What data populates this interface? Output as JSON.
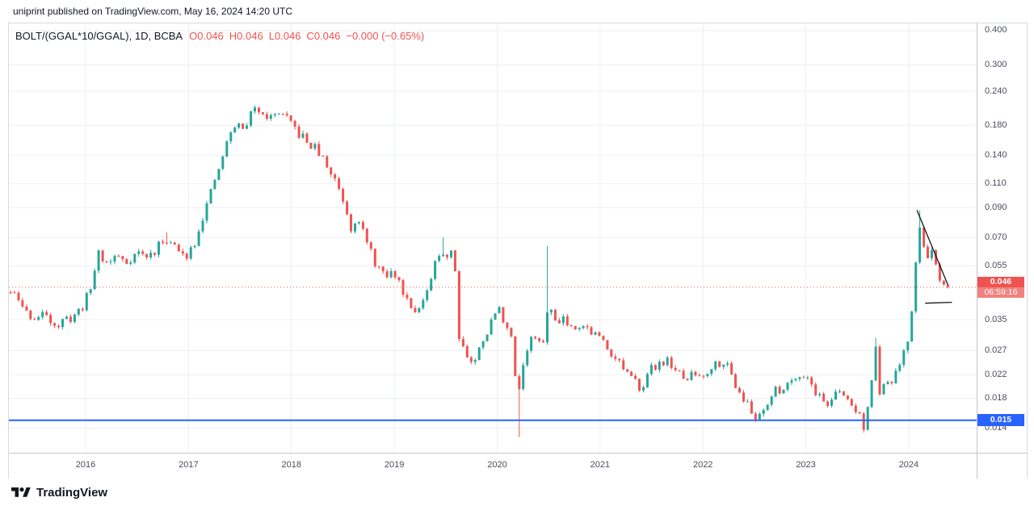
{
  "attribution": "uniprint published on TradingView.com, May 16, 2024 14:20 UTC",
  "header": {
    "symbol": "BOLT/(GGAL*10/GGAL), 1D, BCBA",
    "ohlc_items": [
      {
        "label": "O",
        "value": "0.046"
      },
      {
        "label": "H",
        "value": "0.046"
      },
      {
        "label": "L",
        "value": "0.046"
      },
      {
        "label": "C",
        "value": "0.046"
      },
      {
        "label": "",
        "value": "−0.000 (−0.65%)"
      }
    ]
  },
  "chart_data": {
    "type": "candlestick",
    "symbol": "BOLT/(GGAL*10/GGAL)",
    "interval": "1D",
    "exchange": "BCBA",
    "scale": "logarithmic",
    "time_range": [
      2015.254,
      2024.66
    ],
    "price_range": [
      0.0114,
      0.425
    ],
    "x_axis_labels": [
      "2016",
      "2017",
      "2018",
      "2019",
      "2020",
      "2021",
      "2022",
      "2023",
      "2024"
    ],
    "y_axis_labels": [
      "0.400",
      "0.300",
      "0.240",
      "0.180",
      "0.140",
      "0.110",
      "0.090",
      "0.070",
      "0.055",
      "0.035",
      "0.027",
      "0.022",
      "0.018",
      "0.014"
    ],
    "last_price": 0.046,
    "last_price_label": "0.046",
    "countdown": "06:59:16",
    "horizontal_line": {
      "price": 0.015,
      "label": "0.015"
    },
    "trendlines": [
      {
        "t1": 2024.08,
        "p1": 0.088,
        "t2": 2024.38,
        "p2": 0.047
      },
      {
        "t1": 2024.16,
        "p1": 0.0402,
        "t2": 2024.42,
        "p2": 0.0405
      }
    ],
    "keypoints": [
      [
        2015.27,
        0.044
      ],
      [
        2015.35,
        0.041
      ],
      [
        2015.43,
        0.037
      ],
      [
        2015.52,
        0.035
      ],
      [
        2015.62,
        0.037
      ],
      [
        2015.72,
        0.033
      ],
      [
        2015.82,
        0.035
      ],
      [
        2015.92,
        0.037
      ],
      [
        2016.0,
        0.041
      ],
      [
        2016.07,
        0.048
      ],
      [
        2016.12,
        0.063
      ],
      [
        2016.2,
        0.056
      ],
      [
        2016.3,
        0.06
      ],
      [
        2016.4,
        0.057
      ],
      [
        2016.5,
        0.062
      ],
      [
        2016.6,
        0.059
      ],
      [
        2016.7,
        0.064
      ],
      [
        2016.78,
        0.07
      ],
      [
        2016.86,
        0.065
      ],
      [
        2016.95,
        0.059
      ],
      [
        2017.05,
        0.066
      ],
      [
        2017.12,
        0.08
      ],
      [
        2017.2,
        0.096
      ],
      [
        2017.3,
        0.126
      ],
      [
        2017.4,
        0.165
      ],
      [
        2017.47,
        0.186
      ],
      [
        2017.52,
        0.17
      ],
      [
        2017.6,
        0.196
      ],
      [
        2017.68,
        0.209
      ],
      [
        2017.75,
        0.199
      ],
      [
        2017.82,
        0.19
      ],
      [
        2017.88,
        0.204
      ],
      [
        2017.95,
        0.189
      ],
      [
        2018.05,
        0.171
      ],
      [
        2018.15,
        0.156
      ],
      [
        2018.25,
        0.146
      ],
      [
        2018.35,
        0.126
      ],
      [
        2018.45,
        0.11
      ],
      [
        2018.52,
        0.092
      ],
      [
        2018.58,
        0.076
      ],
      [
        2018.64,
        0.086
      ],
      [
        2018.72,
        0.068
      ],
      [
        2018.8,
        0.058
      ],
      [
        2018.9,
        0.05
      ],
      [
        2019.0,
        0.052
      ],
      [
        2019.08,
        0.045
      ],
      [
        2019.16,
        0.04
      ],
      [
        2019.24,
        0.038
      ],
      [
        2019.32,
        0.043
      ],
      [
        2019.4,
        0.056
      ],
      [
        2019.46,
        0.063
      ],
      [
        2019.52,
        0.06
      ],
      [
        2019.57,
        0.065
      ],
      [
        2019.63,
        0.031
      ],
      [
        2019.7,
        0.026
      ],
      [
        2019.78,
        0.024
      ],
      [
        2019.86,
        0.03
      ],
      [
        2019.93,
        0.033
      ],
      [
        2020.0,
        0.039
      ],
      [
        2020.07,
        0.035
      ],
      [
        2020.14,
        0.029
      ],
      [
        2020.2,
        0.018
      ],
      [
        2020.27,
        0.026
      ],
      [
        2020.35,
        0.031
      ],
      [
        2020.43,
        0.027
      ],
      [
        2020.5,
        0.039
      ],
      [
        2020.56,
        0.035
      ],
      [
        2020.64,
        0.036
      ],
      [
        2020.72,
        0.033
      ],
      [
        2020.8,
        0.034
      ],
      [
        2020.9,
        0.032
      ],
      [
        2021.0,
        0.03
      ],
      [
        2021.1,
        0.027
      ],
      [
        2021.2,
        0.024
      ],
      [
        2021.3,
        0.021
      ],
      [
        2021.4,
        0.02
      ],
      [
        2021.5,
        0.023
      ],
      [
        2021.6,
        0.025
      ],
      [
        2021.7,
        0.024
      ],
      [
        2021.8,
        0.021
      ],
      [
        2021.9,
        0.022
      ],
      [
        2022.0,
        0.022
      ],
      [
        2022.1,
        0.024
      ],
      [
        2022.2,
        0.025
      ],
      [
        2022.3,
        0.021
      ],
      [
        2022.4,
        0.018
      ],
      [
        2022.5,
        0.015
      ],
      [
        2022.6,
        0.017
      ],
      [
        2022.7,
        0.019
      ],
      [
        2022.8,
        0.02
      ],
      [
        2022.9,
        0.022
      ],
      [
        2023.0,
        0.022
      ],
      [
        2023.1,
        0.019
      ],
      [
        2023.2,
        0.017
      ],
      [
        2023.3,
        0.019
      ],
      [
        2023.4,
        0.018
      ],
      [
        2023.5,
        0.016
      ],
      [
        2023.58,
        0.014
      ],
      [
        2023.64,
        0.021
      ],
      [
        2023.68,
        0.027
      ],
      [
        2023.72,
        0.019
      ],
      [
        2023.8,
        0.02
      ],
      [
        2023.9,
        0.023
      ],
      [
        2023.97,
        0.027
      ],
      [
        2024.02,
        0.033
      ],
      [
        2024.06,
        0.05
      ],
      [
        2024.09,
        0.08
      ],
      [
        2024.13,
        0.068
      ],
      [
        2024.17,
        0.058
      ],
      [
        2024.21,
        0.066
      ],
      [
        2024.25,
        0.056
      ],
      [
        2024.29,
        0.048
      ],
      [
        2024.33,
        0.044
      ],
      [
        2024.36,
        0.048
      ],
      [
        2024.38,
        0.046
      ]
    ],
    "spikes": [
      {
        "t": 2016.78,
        "high": 0.073
      },
      {
        "t": 2019.46,
        "high": 0.07
      },
      {
        "t": 2020.2,
        "low": 0.013
      },
      {
        "t": 2020.5,
        "high": 0.065
      },
      {
        "t": 2023.68,
        "high": 0.03
      },
      {
        "t": 2024.09,
        "high": 0.088
      }
    ]
  },
  "colors": {
    "up": "#26a69a",
    "down": "#ef5350",
    "last_price_badge": "#ef5350",
    "countdown_badge": "#f0817e",
    "hline": "#2962ff",
    "grid": "#eceff4",
    "trendline": "#10131a",
    "axis_text": "#4a4e59"
  },
  "footer": {
    "brand": "TradingView"
  }
}
